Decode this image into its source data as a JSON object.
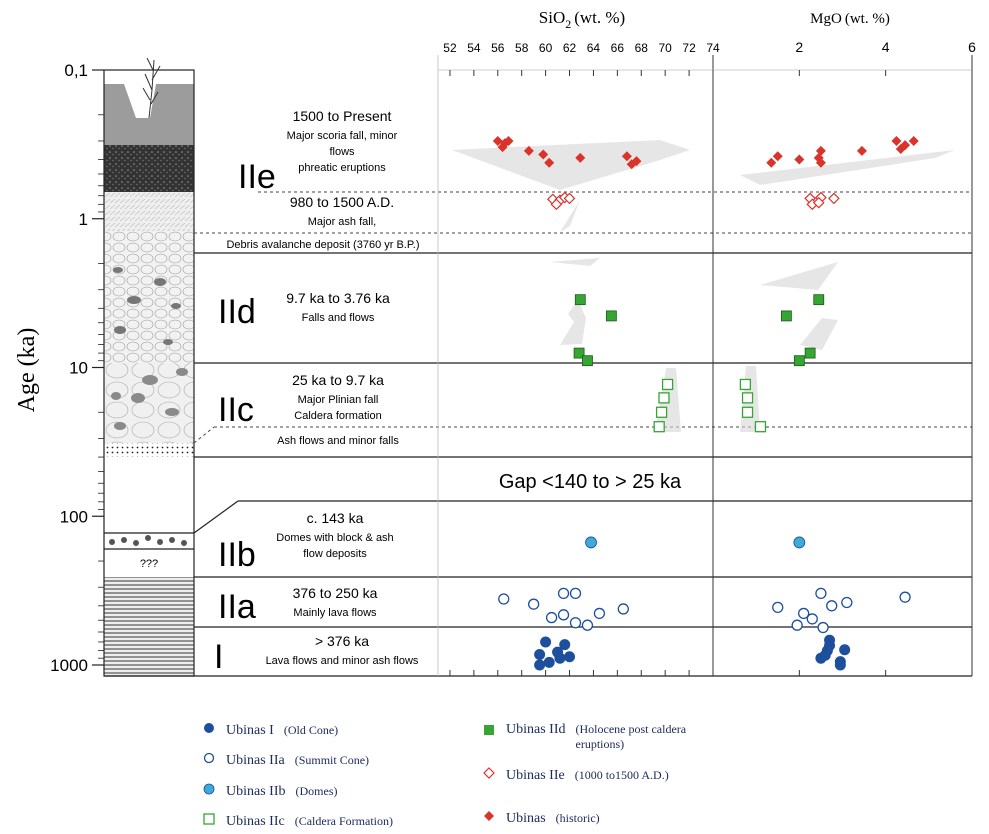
{
  "chart_data": {
    "type": "scatter",
    "age_axis": {
      "label": "Age (ka)",
      "scale": "log",
      "range": [
        0.1,
        1000
      ],
      "ticks": [
        "0,1",
        "1",
        "10",
        "100",
        "1000"
      ]
    },
    "panels": [
      {
        "id": "sio2",
        "title_main": "SiO",
        "title_sub": "2",
        "title_unit": "(wt. %)",
        "range": [
          51,
          74
        ],
        "ticks": [
          52,
          54,
          56,
          58,
          60,
          62,
          64,
          66,
          68,
          70,
          72,
          74
        ]
      },
      {
        "id": "mgo",
        "title_main": "MgO",
        "title_sub": "",
        "title_unit": "(wt. %)",
        "range": [
          0,
          6
        ],
        "ticks": [
          2,
          4,
          6
        ]
      }
    ],
    "units": [
      {
        "code": "IIe",
        "texts": [
          "1500 to Present",
          "Major scoria fall, minor",
          "flows",
          "phreatic eruptions"
        ]
      },
      {
        "code": "",
        "texts": [
          "980 to 1500 A.D.",
          "Major ash fall,"
        ]
      },
      {
        "code": "",
        "texts": [
          "Debris avalanche deposit (3760 yr B.P.)"
        ]
      },
      {
        "code": "IId",
        "texts": [
          "9.7 ka to 3.76 ka",
          "Falls and flows"
        ]
      },
      {
        "code": "IIc",
        "texts": [
          "25 ka to 9.7 ka",
          "Major Plinian fall",
          "Caldera formation",
          "Ash flows and minor falls"
        ]
      },
      {
        "code": "",
        "texts": [
          "Gap <140 to > 25 ka"
        ]
      },
      {
        "code": "IIb",
        "texts": [
          "c. 143  ka",
          "Domes with block & ash",
          "flow deposits"
        ]
      },
      {
        "code": "IIa",
        "texts": [
          "376 to 250 ka",
          "Mainly lava flows"
        ]
      },
      {
        "code": "I",
        "texts": [
          "> 376 ka",
          "Lava flows and minor ash flows"
        ]
      }
    ],
    "column_note": "???",
    "series": [
      {
        "name": "Ubinas I",
        "note": "(Old Cone)",
        "marker": "circle-filled",
        "color": "#1d4f9c",
        "sio2": [
          [
            61,
            820
          ],
          [
            60,
            700
          ],
          [
            61.6,
            730
          ],
          [
            59.5,
            850
          ],
          [
            61.2,
            900
          ],
          [
            62,
            880
          ],
          [
            59.5,
            1000
          ],
          [
            60.3,
            960
          ]
        ],
        "mgo": [
          [
            2.7,
            740
          ],
          [
            2.5,
            900
          ],
          [
            2.65,
            800
          ],
          [
            2.6,
            860
          ],
          [
            3.05,
            790
          ],
          [
            2.95,
            950
          ],
          [
            2.95,
            1000
          ],
          [
            2.7,
            680
          ]
        ]
      },
      {
        "name": "Ubinas IIa",
        "note": "(Summit Cone)",
        "marker": "circle-open",
        "color": "#1d4f9c",
        "sio2": [
          [
            56.5,
            360
          ],
          [
            59,
            390
          ],
          [
            62.5,
            330
          ],
          [
            61.5,
            330
          ],
          [
            60.5,
            480
          ],
          [
            61.5,
            460
          ],
          [
            62.5,
            520
          ],
          [
            63.5,
            540
          ],
          [
            64.5,
            450
          ],
          [
            66.5,
            420
          ]
        ],
        "mgo": [
          [
            1.5,
            410
          ],
          [
            2.5,
            330
          ],
          [
            2.1,
            450
          ],
          [
            2.3,
            490
          ],
          [
            2.55,
            560
          ],
          [
            2.75,
            400
          ],
          [
            3.1,
            380
          ],
          [
            4.45,
            350
          ],
          [
            1.95,
            540
          ]
        ]
      },
      {
        "name": "Ubinas IIb",
        "note": "(Domes)",
        "marker": "circle-cyan",
        "color": "#3fa9d8",
        "sio2": [
          [
            63.8,
            150
          ]
        ],
        "mgo": [
          [
            2.0,
            150
          ]
        ]
      },
      {
        "name": "Ubinas IIc",
        "note": "(Caldera Formation)",
        "marker": "square-open",
        "color": "#37a534",
        "sio2": [
          [
            70.2,
            13
          ],
          [
            69.9,
            16
          ],
          [
            69.7,
            20
          ],
          [
            69.5,
            25
          ]
        ],
        "mgo": [
          [
            0.75,
            13
          ],
          [
            0.8,
            16
          ],
          [
            0.8,
            20
          ],
          [
            1.1,
            25
          ]
        ]
      },
      {
        "name": "Ubinas IId",
        "note": "(Holocene post caldera eruptions)",
        "marker": "square-filled",
        "color": "#37a534",
        "sio2": [
          [
            62.9,
            3.5
          ],
          [
            65.5,
            4.5
          ],
          [
            62.8,
            8.0
          ],
          [
            63.5,
            9.0
          ]
        ],
        "mgo": [
          [
            2.45,
            3.5
          ],
          [
            1.7,
            4.5
          ],
          [
            2.25,
            8.0
          ],
          [
            2.0,
            9.0
          ]
        ]
      },
      {
        "name": "Ubinas IIe",
        "note": "(1000  to1500 A.D.)",
        "marker": "diamond-open",
        "color": "#d9342b",
        "sio2": [
          [
            60.6,
            0.74
          ],
          [
            61.2,
            0.75
          ],
          [
            61.6,
            0.72
          ],
          [
            62.0,
            0.73
          ],
          [
            60.9,
            0.8
          ]
        ],
        "mgo": [
          [
            2.25,
            0.73
          ],
          [
            2.5,
            0.72
          ],
          [
            2.8,
            0.73
          ],
          [
            2.3,
            0.8
          ],
          [
            2.45,
            0.78
          ]
        ]
      },
      {
        "name": "Ubinas",
        "note": "(historic)",
        "marker": "diamond-filled",
        "color": "#d9342b",
        "sio2": [
          [
            56.0,
            0.3
          ],
          [
            56.6,
            0.31
          ],
          [
            56.9,
            0.3
          ],
          [
            56.4,
            0.33
          ],
          [
            58.6,
            0.35
          ],
          [
            59.8,
            0.37
          ],
          [
            60.3,
            0.42
          ],
          [
            62.9,
            0.39
          ],
          [
            66.8,
            0.38
          ],
          [
            67.6,
            0.41
          ],
          [
            67.2,
            0.43
          ]
        ],
        "mgo": [
          [
            1.35,
            0.42
          ],
          [
            1.5,
            0.38
          ],
          [
            2.0,
            0.4
          ],
          [
            2.5,
            0.35
          ],
          [
            2.45,
            0.39
          ],
          [
            2.5,
            0.42
          ],
          [
            3.45,
            0.35
          ],
          [
            4.25,
            0.3
          ],
          [
            4.45,
            0.32
          ],
          [
            4.65,
            0.3
          ],
          [
            4.35,
            0.34
          ]
        ]
      }
    ]
  }
}
